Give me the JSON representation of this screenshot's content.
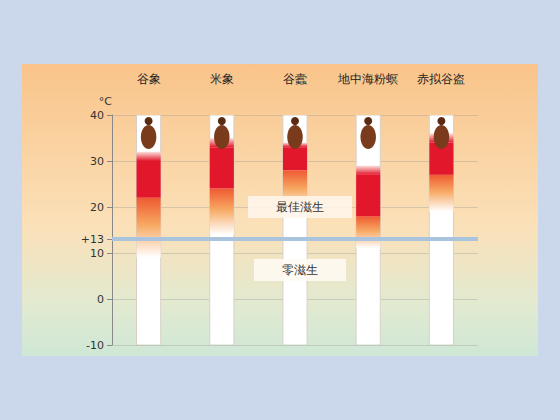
{
  "chart_data": {
    "type": "range_bar",
    "categories": [
      "谷象",
      "米象",
      "谷蠹",
      "地中海粉螟",
      "赤拟谷盗"
    ],
    "no_growth_max": [
      9,
      14,
      19,
      11,
      19
    ],
    "optimal_low": [
      22,
      24,
      28,
      18,
      27
    ],
    "optimal_high": [
      30,
      33,
      33,
      27,
      34
    ],
    "growth_max": [
      32,
      35,
      34,
      29,
      36
    ],
    "ylabel": "°C",
    "ylim": [
      -10,
      40
    ],
    "yticks": [
      -10,
      0,
      10,
      {
        "value": 13,
        "label": "+13"
      },
      20,
      30,
      40
    ],
    "reference_line": 13,
    "annotations": [
      "最佳滋生",
      "零滋生"
    ],
    "grid": true
  }
}
